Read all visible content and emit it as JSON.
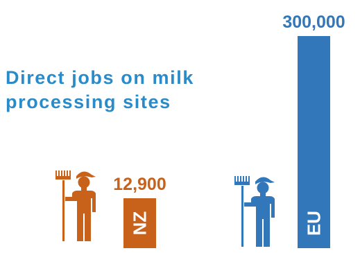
{
  "colors": {
    "nz": "#c8611a",
    "eu": "#3177ba",
    "title": "#2a8bc8",
    "bar_label": "#ffffff"
  },
  "title": {
    "line1": "Direct jobs on milk",
    "line2": "processing sites"
  },
  "icons": [
    "worker-with-rake-icon-nz",
    "worker-with-rake-icon-eu"
  ],
  "chart_data": {
    "type": "bar",
    "categories": [
      "NZ",
      "EU"
    ],
    "values": [
      12900,
      300000
    ],
    "value_labels": [
      "12,900",
      "300,000"
    ],
    "ylim": [
      0,
      300000
    ],
    "grid": false
  }
}
